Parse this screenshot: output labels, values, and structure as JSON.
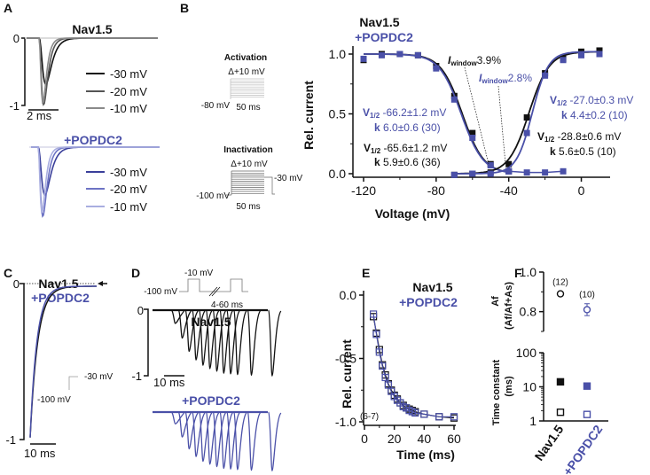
{
  "colors": {
    "black": "#111111",
    "blue": "#4a50a8",
    "gray_dark": "#555555",
    "gray_mid": "#8a8a8a",
    "gray_light": "#c8c8c8",
    "blue_dark": "#3a3f9a",
    "blue_mid": "#6d73c4",
    "blue_light": "#a9aee0"
  },
  "panels": {
    "A": {
      "letter": "A",
      "title_top": "Nav1.5",
      "title_bottom": "+POPDC2",
      "y_top": "0",
      "y_bottom": "-1",
      "scale": "2 ms",
      "legend": [
        "-30 mV",
        "-20 mV",
        "-10 mV"
      ]
    },
    "B": {
      "letter": "B",
      "protocol_activation": {
        "title": "Activation",
        "step": "Δ+10 mV",
        "hold": "-80 mV",
        "duration": "50 ms"
      },
      "protocol_inactivation": {
        "title": "Inactivation",
        "step": "Δ+10 mV",
        "hold": "-100 mV",
        "test": "-30 mV",
        "duration": "50 ms"
      },
      "title_top": "Nav1.5",
      "title_bottom": "+POPDC2",
      "window_black": {
        "label": "I",
        "sub": "window",
        "value": "3.9%"
      },
      "window_blue": {
        "label": "I",
        "sub": "window",
        "value": "2.8%"
      },
      "ann_blue_inact": {
        "v": "V",
        "vsub": "1/2",
        "vtext": " -66.2±1.2 mV",
        "k": "k",
        "ktext": " 6.0±0.6 (30)"
      },
      "ann_black_inact": {
        "v": "V",
        "vsub": "1/2",
        "vtext": " -65.6±1.2 mV",
        "k": "k",
        "ktext": " 5.9±0.6 (36)"
      },
      "ann_blue_act": {
        "v": "V",
        "vsub": "1/2",
        "vtext": " -27.0±0.3 mV",
        "k": "k",
        "ktext": " 4.4±0.2 (10)"
      },
      "ann_black_act": {
        "v": "V",
        "vsub": "1/2",
        "vtext": " -28.8±0.6 mV",
        "k": "k",
        "ktext": " 5.6±0.5 (10)"
      }
    },
    "C": {
      "letter": "C",
      "title_top": "Nav1.5",
      "title_bottom": "+POPDC2",
      "y_top": "0",
      "y_bottom": "-1",
      "scale": "10 ms",
      "protocol_test": "-30 mV",
      "protocol_hold": "-100 mV"
    },
    "D": {
      "letter": "D",
      "protocol_test": "-10 mV",
      "protocol_hold": "-100 mV",
      "protocol_interval": "4-60 ms",
      "title_top": "Nav1.5",
      "title_bottom": "+POPDC2",
      "y_top": "0",
      "y_bottom": "-1",
      "scale": "10 ms"
    },
    "E": {
      "letter": "E"
    },
    "F": {
      "letter": "F"
    }
  },
  "chart_data": [
    {
      "id": "B",
      "type": "scatter",
      "title": "Nav1.5 / +POPDC2",
      "xlabel": "Voltage (mV)",
      "ylabel": "Rel. current",
      "xlim": [
        -125,
        13
      ],
      "ylim": [
        -0.05,
        1.08
      ],
      "xticks": [
        -120,
        -80,
        -40,
        0
      ],
      "yticks": [
        0.0,
        0.5,
        1.0
      ],
      "xtick_labels": [
        "-120",
        "-80",
        "-40",
        "0"
      ],
      "ytick_labels": [
        "0.0",
        "0.5",
        "1.0"
      ],
      "series": [
        {
          "name": "Nav1.5 inactivation",
          "color": "black",
          "x": [
            -120,
            -110,
            -100,
            -90,
            -80,
            -70,
            -60,
            -50,
            -40
          ],
          "y": [
            0.95,
            1.0,
            1.0,
            0.99,
            0.9,
            0.65,
            0.34,
            0.08,
            0.02
          ],
          "fit": {
            "v_half": -65.6,
            "k": 5.9,
            "kind": "inactivation"
          }
        },
        {
          "name": "+POPDC2 inactivation",
          "color": "blue",
          "x": [
            -120,
            -110,
            -100,
            -90,
            -80,
            -70,
            -60,
            -50,
            -40
          ],
          "y": [
            0.96,
            0.99,
            1.0,
            0.99,
            0.88,
            0.62,
            0.3,
            0.07,
            0.02
          ],
          "fit": {
            "v_half": -66.2,
            "k": 6.0,
            "kind": "inactivation"
          }
        },
        {
          "name": "Nav1.5 activation",
          "color": "black",
          "x": [
            -70,
            -60,
            -50,
            -40,
            -30,
            -20,
            -10,
            0,
            10
          ],
          "y": [
            -0.01,
            0.0,
            0.01,
            0.08,
            0.47,
            0.84,
            0.96,
            1.02,
            1.03
          ],
          "fit": {
            "v_half": -28.8,
            "k": 5.6,
            "kind": "activation"
          }
        },
        {
          "name": "+POPDC2 activation",
          "color": "blue",
          "x": [
            -70,
            -60,
            -50,
            -40,
            -30,
            -20,
            -10,
            0,
            10
          ],
          "y": [
            -0.01,
            0.0,
            0.0,
            0.02,
            0.34,
            0.82,
            0.95,
            0.99,
            1.0
          ],
          "fit": {
            "v_half": -27.0,
            "k": 4.4,
            "kind": "activation"
          }
        },
        {
          "name": "+POPDC2 inactivation tail",
          "color": "blue",
          "x": [
            -40,
            -30,
            -20,
            -10
          ],
          "y": [
            0.02,
            0.01,
            0.01,
            0.02
          ]
        }
      ],
      "annotations": [
        "Iwindow 3.9%",
        "Iwindow 2.8%",
        "V1/2 -66.2±1.2 mV k 6.0±0.6 (30)",
        "V1/2 -65.6±1.2 mV k 5.9±0.6 (36)",
        "V1/2 -27.0±0.3 mV k 4.4±0.2 (10)",
        "V1/2 -28.8±0.6 mV k 5.6±0.5 (10)"
      ]
    },
    {
      "id": "E",
      "type": "line",
      "title": "Nav1.5 / +POPDC2",
      "xlabel": "Time (ms)",
      "ylabel": "Rel. current",
      "xlim": [
        0,
        62
      ],
      "ylim": [
        -1.03,
        0.02
      ],
      "xticks": [
        0,
        20,
        40,
        60
      ],
      "xtick_labels": [
        "0",
        "20",
        "40",
        "60"
      ],
      "yticks": [
        0.0,
        -0.5,
        -1.0
      ],
      "ytick_labels": [
        "0.0",
        "-0.5",
        "-1.0"
      ],
      "n_label": "(6-7)",
      "series": [
        {
          "name": "Nav1.5",
          "color": "black",
          "x": [
            6,
            8,
            10,
            12,
            14,
            16,
            18,
            20,
            22,
            24,
            26,
            28,
            30,
            32,
            34,
            40,
            50,
            60
          ],
          "y": [
            -0.17,
            -0.3,
            -0.43,
            -0.55,
            -0.63,
            -0.7,
            -0.75,
            -0.79,
            -0.82,
            -0.85,
            -0.87,
            -0.89,
            -0.9,
            -0.91,
            -0.92,
            -0.94,
            -0.96,
            -0.97
          ]
        },
        {
          "name": "+POPDC2",
          "color": "blue",
          "x": [
            6,
            8,
            10,
            12,
            14,
            16,
            18,
            20,
            22,
            24,
            26,
            28,
            30,
            32,
            34,
            40,
            50,
            60
          ],
          "y": [
            -0.15,
            -0.31,
            -0.45,
            -0.56,
            -0.65,
            -0.71,
            -0.76,
            -0.8,
            -0.83,
            -0.85,
            -0.88,
            -0.89,
            -0.91,
            -0.92,
            -0.93,
            -0.94,
            -0.96,
            -0.96
          ]
        }
      ]
    },
    {
      "id": "F-top",
      "type": "scatter",
      "ylabel": "Af (Af/Af+As)",
      "ylim": [
        0.7,
        1.0
      ],
      "yticks": [
        0.8,
        1.0
      ],
      "ytick_labels": [
        "0.8",
        "1.0"
      ],
      "categories": [
        "Nav1.5",
        "+POPDC2"
      ],
      "values": [
        0.89,
        0.81
      ],
      "errors": [
        0.01,
        0.03
      ],
      "n_labels": [
        "(12)",
        "(10)"
      ]
    },
    {
      "id": "F-bottom",
      "type": "scatter",
      "ylabel": "Time constant (ms)",
      "yscale": "log",
      "ylim": [
        1,
        100
      ],
      "yticks": [
        1,
        10,
        100
      ],
      "ytick_labels": [
        "1",
        "10",
        "100"
      ],
      "categories": [
        "Nav1.5",
        "+POPDC2"
      ],
      "series": [
        {
          "name": "tau slow",
          "filled": true,
          "values": [
            14,
            10.5
          ]
        },
        {
          "name": "tau fast",
          "filled": false,
          "values": [
            1.8,
            1.55
          ]
        }
      ]
    }
  ]
}
